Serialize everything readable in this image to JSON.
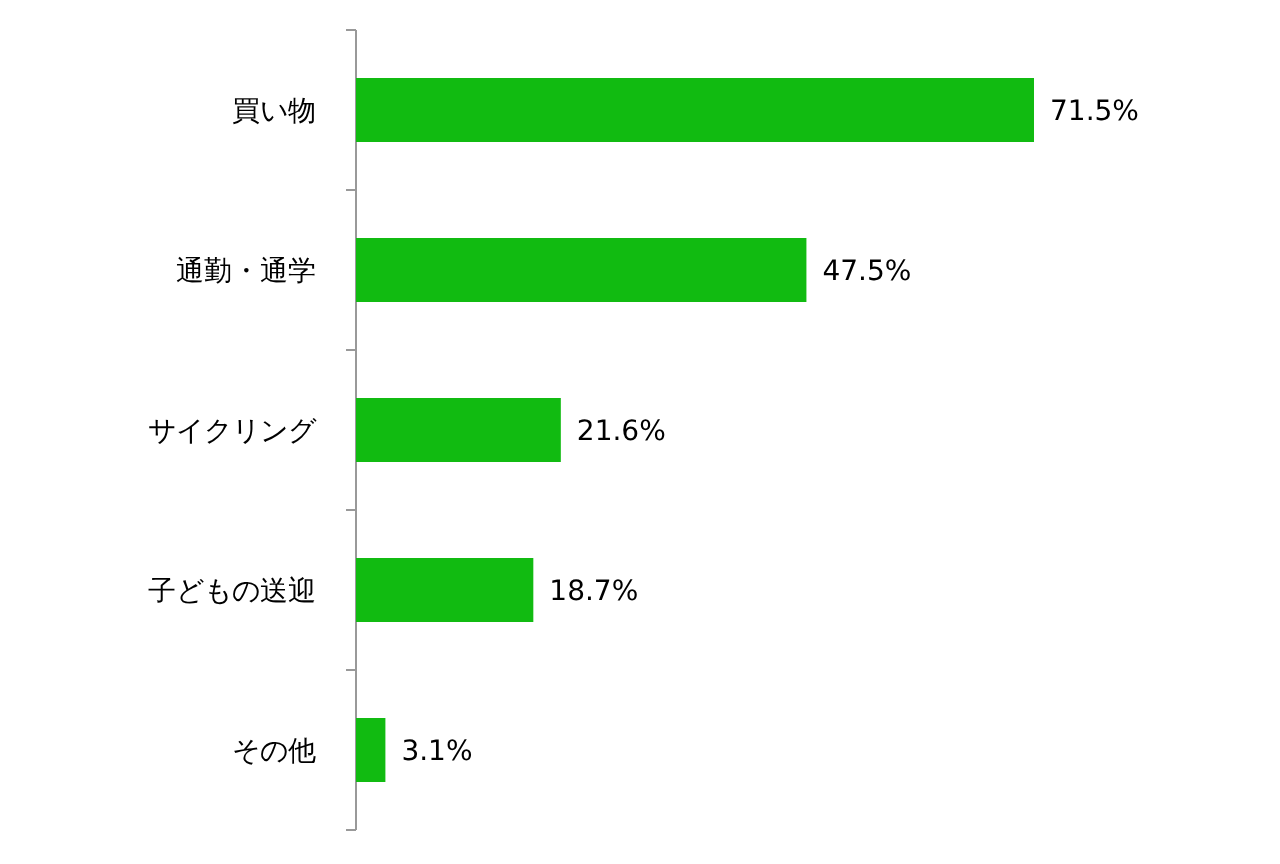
{
  "chart_data": {
    "type": "bar",
    "orientation": "horizontal",
    "categories": [
      "買い物",
      "通勤・通学",
      "サイクリング",
      "子どもの送迎",
      "その他"
    ],
    "values": [
      71.5,
      47.5,
      21.6,
      18.7,
      3.1
    ],
    "value_labels": [
      "71.5%",
      "47.5%",
      "21.6%",
      "18.7%",
      "3.1%"
    ],
    "color": "#11bb11"
  }
}
